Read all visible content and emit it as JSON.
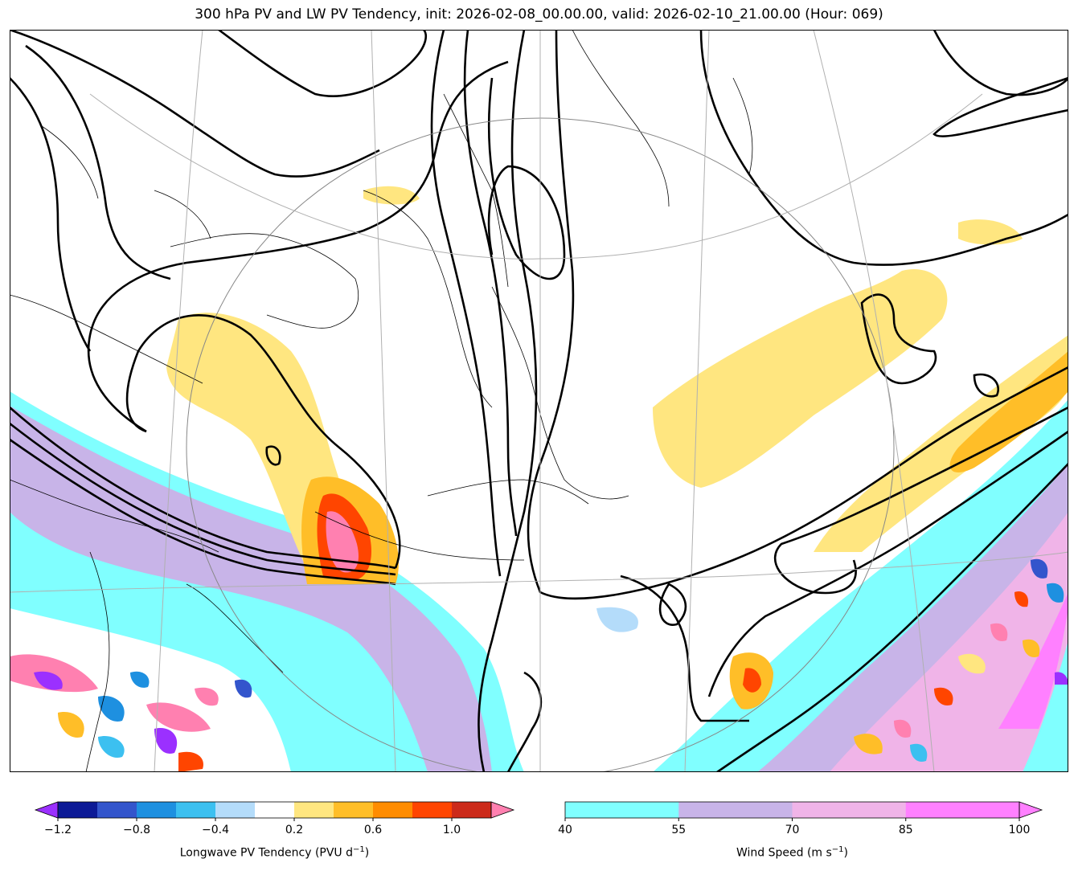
{
  "title": "300 hPa PV and LW PV Tendency, init: 2026-02-08_00.00.00, valid: 2026-02-10_21.00.00 (Hour: 069)",
  "colorbars": {
    "pv_tendency": {
      "label": "Longwave PV Tendency (PVU d",
      "label_sup": "−1",
      "label_end": ")",
      "ticks": [
        "−1.2",
        "−0.8",
        "−0.4",
        "0.2",
        "0.6",
        "1.0"
      ],
      "colors": [
        "#0c1a96",
        "#3355cc",
        "#1e90e0",
        "#3cc0f0",
        "#b4dcfa",
        "#ffffff",
        "#ffe680",
        "#ffbe28",
        "#ff8c00",
        "#ff4500",
        "#cc2a1a"
      ],
      "under_color": "#9b30ff",
      "over_color": "#ff80b0"
    },
    "wind_speed": {
      "label": "Wind Speed (m s",
      "label_sup": "−1",
      "label_end": ")",
      "ticks": [
        "40",
        "55",
        "70",
        "85",
        "100"
      ],
      "colors": [
        "#80ffff",
        "#c8b4e8",
        "#f0b4e8",
        "#ff80ff"
      ]
    }
  }
}
